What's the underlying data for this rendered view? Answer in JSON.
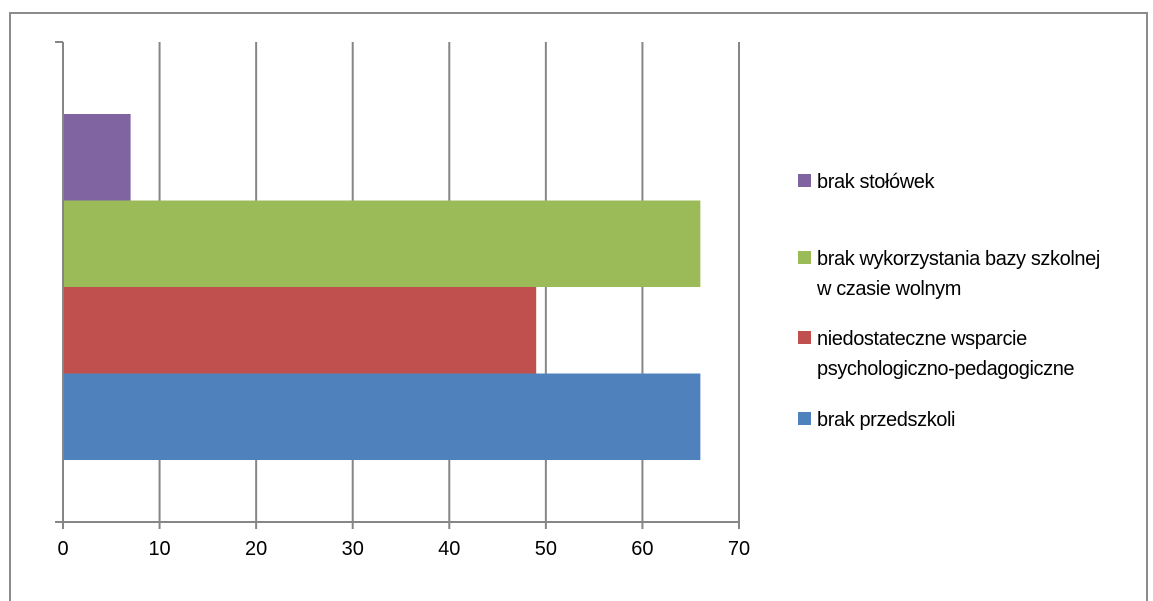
{
  "chart_data": {
    "type": "bar",
    "orientation": "horizontal",
    "title": "",
    "xlabel": "",
    "ylabel": "",
    "xlim": [
      0,
      70
    ],
    "x_ticks": [
      "0",
      "10",
      "20",
      "30",
      "40",
      "50",
      "60",
      "70"
    ],
    "x_tick_values": [
      0,
      10,
      20,
      30,
      40,
      50,
      60,
      70
    ],
    "grid": "vertical",
    "legend_position": "right",
    "series": [
      {
        "name": "brak przedszkoli",
        "value": 66,
        "color": "#4f81bd"
      },
      {
        "name": "niedostateczne wsparcie psychologiczno-pedagogiczne",
        "value": 49,
        "color": "#c0504d"
      },
      {
        "name": "brak wykorzystania bazy szkolnej w czasie wolnym",
        "value": 66,
        "color": "#9bbb59"
      },
      {
        "name": "brak stołówek",
        "value": 7,
        "color": "#8064a2"
      }
    ]
  },
  "legend": {
    "items": [
      {
        "label": "brak stołówek",
        "color": "#8064a2"
      },
      {
        "label": "brak wykorzystania bazy szkolnej w czasie wolnym",
        "color": "#9bbb59"
      },
      {
        "label": "niedostateczne wsparcie psychologiczno-pedagogiczne",
        "color": "#c0504d"
      },
      {
        "label": "brak przedszkoli",
        "color": "#4f81bd"
      }
    ]
  }
}
